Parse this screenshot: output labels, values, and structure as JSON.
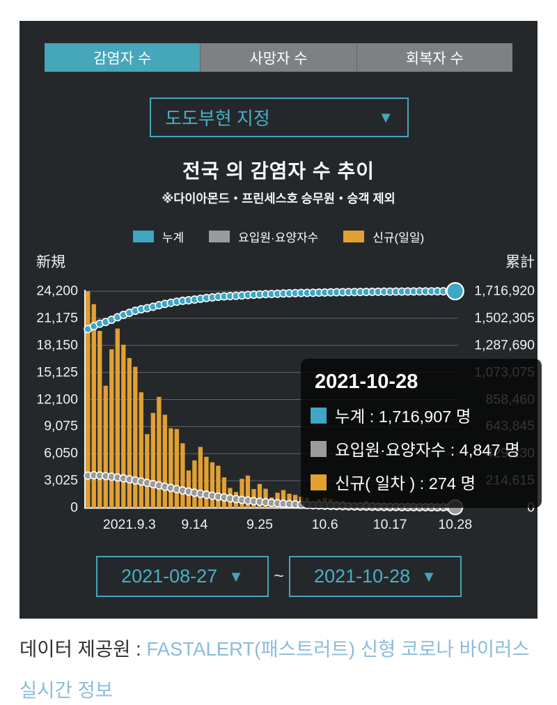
{
  "ui_colors": {
    "accent_teal": "#46a6ba",
    "panel_bg": "#25282b",
    "link_blue": "#8abcdc"
  },
  "tabs": [
    {
      "label": "감염자 수",
      "active": true
    },
    {
      "label": "사망자 수",
      "active": false
    },
    {
      "label": "회복자 수",
      "active": false
    }
  ],
  "region_select": {
    "value": "도도부현 지정"
  },
  "header": {
    "title": "전국 의 감염자 수 추이",
    "subtitle": "※다이아몬드・프린세스호 승무원・승객 제외"
  },
  "legend": [
    {
      "label": "누계",
      "color": "#3fa6c4"
    },
    {
      "label": "요입원·요양자수",
      "color": "#9b9b9b"
    },
    {
      "label": "신규(일일)",
      "color": "#e2a033"
    }
  ],
  "tooltip": {
    "date": "2021-10-28",
    "rows": [
      {
        "color": "#3fa6c4",
        "text": "누계 : 1,716,907 명"
      },
      {
        "color": "#9b9b9b",
        "text": "요입원·요양자수 : 4,847 명"
      },
      {
        "color": "#e2a033",
        "text": "신규( 일차 ) : 274 명"
      }
    ]
  },
  "date_range": {
    "start": "2021-08-27",
    "end": "2021-10-28",
    "separator": "~"
  },
  "footer": {
    "prefix": "데이터 제공원 : ",
    "link_text": "FASTALERT(패스트러트) 신형 코로나 바이러스 실시간 정보"
  },
  "chart_data": {
    "type": "bar",
    "title": "전국 의 감염자 수 추이",
    "x_start_date": "2021-08-27",
    "x_end_date": "2021-10-28",
    "days": 63,
    "grid": true,
    "left_axis": {
      "label": "新規",
      "max": 24200,
      "min": 0,
      "tick_labels": [
        "24,200",
        "21,175",
        "18,150",
        "15,125",
        "12,100",
        "9,075",
        "6,050",
        "3,025",
        "0"
      ]
    },
    "right_axis": {
      "label": "累計",
      "max": 1716920,
      "min": 0,
      "tick_labels": [
        "1,716,920",
        "1,502,305",
        "1,287,690",
        "1,073,075",
        "858,460",
        "643,845",
        "429,230",
        "214,615",
        "0"
      ]
    },
    "x_ticks": [
      {
        "label": "2021.9.3",
        "day": 7
      },
      {
        "label": "9.14",
        "day": 18
      },
      {
        "label": "9.25",
        "day": 29
      },
      {
        "label": "10.6",
        "day": 40
      },
      {
        "label": "10.17",
        "day": 51
      },
      {
        "label": "10.28",
        "day": 62
      }
    ],
    "series": [
      {
        "name": "신규(일일)",
        "type": "bar",
        "axis": "left",
        "color": "#e2a033",
        "values": [
          24200,
          22750,
          19762,
          13638,
          17713,
          20031,
          18228,
          16738,
          15753,
          12908,
          8234,
          10603,
          12396,
          10400,
          8892,
          8807,
          7212,
          4171,
          5301,
          6806,
          5704,
          5092,
          4702,
          3401,
          2224,
          1767,
          3245,
          3604,
          2093,
          2674,
          2134,
          1147,
          1690,
          1986,
          1575,
          1447,
          1245,
          1147,
          602,
          944,
          1121,
          973,
          786,
          778,
          625,
          369,
          611,
          734,
          619,
          506,
          532,
          429,
          232,
          372,
          391,
          345,
          325,
          285,
          236,
          153,
          312,
          310,
          274
        ]
      },
      {
        "name": "요입원·요양자수",
        "type": "dot-line",
        "axis": "right",
        "color": "#9b9b9b",
        "values": [
          255000,
          258000,
          256000,
          252000,
          247000,
          241000,
          234000,
          226000,
          217000,
          208000,
          198000,
          188000,
          178000,
          168000,
          158000,
          148000,
          138000,
          129000,
          120000,
          112000,
          104000,
          96000,
          89000,
          82000,
          75000,
          69000,
          63000,
          58000,
          53000,
          48000,
          44000,
          40000,
          36500,
          33000,
          30000,
          27500,
          25000,
          23000,
          21000,
          19200,
          17500,
          16000,
          14700,
          13500,
          12400,
          11400,
          10500,
          9700,
          9000,
          8300,
          7700,
          7200,
          6700,
          6300,
          5900,
          5600,
          5400,
          5200,
          5000,
          4950,
          4900,
          4870,
          4847
        ]
      },
      {
        "name": "누계",
        "type": "dot-line",
        "axis": "right",
        "color": "#3fa6c4",
        "values": [
          1416823,
          1439573,
          1459335,
          1472973,
          1490686,
          1510717,
          1528945,
          1545683,
          1561436,
          1574344,
          1582578,
          1593181,
          1605577,
          1615977,
          1624869,
          1633676,
          1640888,
          1645059,
          1650360,
          1657166,
          1662870,
          1667962,
          1672664,
          1676065,
          1678289,
          1680056,
          1683301,
          1686905,
          1688998,
          1691672,
          1693806,
          1694953,
          1696643,
          1698629,
          1700204,
          1701651,
          1702896,
          1704043,
          1704645,
          1705589,
          1706710,
          1707683,
          1708469,
          1709247,
          1709872,
          1710241,
          1710852,
          1711586,
          1712205,
          1712711,
          1713243,
          1713672,
          1713904,
          1714276,
          1714667,
          1715012,
          1715337,
          1715622,
          1715858,
          1716011,
          1716323,
          1716633,
          1716907
        ]
      }
    ],
    "highlight": {
      "date": "2021-10-28",
      "cumulative": 1716907,
      "in_care": 4847,
      "new_daily": 274
    }
  }
}
